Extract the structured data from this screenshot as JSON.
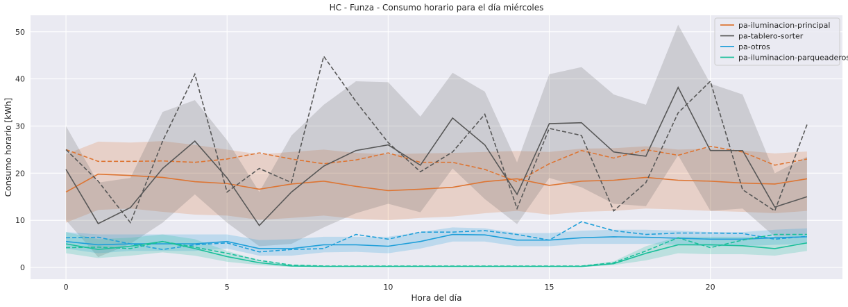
{
  "chart_data": {
    "type": "line",
    "title": "HC - Funza - Consumo horario para el día miércoles",
    "xlabel": "Hora del día",
    "ylabel": "Consumo horario [kWh]",
    "xlim": [
      -1.1,
      24.1
    ],
    "ylim": [
      -2.5,
      53.5
    ],
    "x_ticks": [
      0,
      5,
      10,
      15,
      20
    ],
    "y_ticks": [
      0,
      10,
      20,
      30,
      40,
      50
    ],
    "grid": true,
    "legend_position": "top-right",
    "background": "#eaeaf2",
    "x": [
      0,
      1,
      2,
      3,
      4,
      5,
      6,
      7,
      8,
      9,
      10,
      11,
      12,
      13,
      14,
      15,
      16,
      17,
      18,
      19,
      20,
      21,
      22,
      23
    ],
    "series": [
      {
        "name": "pa-iluminacion-principal",
        "color": "#dd7533",
        "mean": [
          16.0,
          19.8,
          19.5,
          19.1,
          18.2,
          17.8,
          16.6,
          17.7,
          18.3,
          17.2,
          16.3,
          16.6,
          17.0,
          18.2,
          18.8,
          17.4,
          18.3,
          18.5,
          19.1,
          18.5,
          18.3,
          17.9,
          17.7,
          18.8
        ],
        "lower": [
          9.5,
          12.2,
          12.5,
          11.8,
          11.2,
          11.0,
          10.1,
          10.5,
          11.0,
          10.3,
          10.0,
          10.5,
          10.8,
          11.5,
          12.0,
          11.2,
          11.8,
          12.0,
          12.5,
          12.3,
          12.0,
          11.8,
          11.5,
          12.0
        ],
        "upper": [
          24.0,
          26.7,
          26.5,
          26.8,
          26.0,
          25.0,
          24.0,
          24.5,
          25.0,
          24.3,
          24.0,
          24.2,
          24.3,
          24.5,
          24.7,
          24.5,
          25.2,
          25.3,
          25.7,
          25.0,
          25.2,
          24.8,
          24.2,
          24.6
        ],
        "dashed": [
          25.0,
          22.5,
          22.5,
          22.6,
          22.3,
          23.0,
          24.3,
          23.0,
          22.0,
          22.8,
          24.3,
          22.3,
          22.3,
          20.8,
          18.2,
          22.0,
          24.8,
          23.2,
          25.0,
          23.8,
          25.7,
          24.5,
          21.7,
          23.0
        ]
      },
      {
        "name": "pa-tablero-sorter",
        "color": "#575757",
        "mean": [
          20.8,
          9.3,
          12.7,
          21.0,
          26.8,
          19.0,
          8.9,
          16.0,
          21.5,
          24.8,
          26.0,
          21.7,
          31.7,
          26.0,
          15.5,
          30.5,
          30.7,
          24.5,
          23.6,
          38.2,
          24.8,
          24.8,
          12.8,
          15.0
        ],
        "lower": [
          10.0,
          2.2,
          5.0,
          9.5,
          15.5,
          9.5,
          4.5,
          5.0,
          8.5,
          11.5,
          13.5,
          11.7,
          21.0,
          14.5,
          9.2,
          19.0,
          17.0,
          13.5,
          13.0,
          23.8,
          12.0,
          12.5,
          6.5,
          7.0
        ],
        "upper": [
          30.0,
          18.0,
          19.0,
          33.0,
          35.5,
          27.0,
          16.0,
          28.0,
          34.5,
          39.5,
          39.3,
          32.0,
          41.3,
          37.3,
          22.3,
          41.0,
          42.5,
          36.7,
          34.5,
          51.5,
          39.0,
          36.7,
          20.0,
          23.5
        ],
        "dashed": [
          25.0,
          18.3,
          9.5,
          26.8,
          41.0,
          16.0,
          21.0,
          18.0,
          44.8,
          35.2,
          26.5,
          20.3,
          24.5,
          32.5,
          12.5,
          29.5,
          28.0,
          12.0,
          18.0,
          32.8,
          39.5,
          16.5,
          12.0,
          30.3
        ]
      },
      {
        "name": "pa-otros",
        "color": "#1f9fd9",
        "mean": [
          5.5,
          4.8,
          5.0,
          5.0,
          5.0,
          5.5,
          4.0,
          4.0,
          4.8,
          4.8,
          4.5,
          5.5,
          7.0,
          6.9,
          5.8,
          5.8,
          6.3,
          6.5,
          6.4,
          6.2,
          6.0,
          6.0,
          6.3,
          6.5
        ],
        "lower": [
          4.0,
          3.0,
          3.5,
          3.5,
          3.5,
          4.0,
          2.5,
          2.5,
          3.2,
          3.3,
          3.0,
          4.0,
          5.5,
          5.5,
          4.5,
          4.5,
          5.0,
          5.0,
          5.0,
          4.8,
          4.5,
          4.5,
          4.8,
          5.0
        ],
        "upper": [
          7.5,
          7.0,
          7.0,
          7.0,
          7.0,
          7.0,
          5.8,
          6.0,
          6.5,
          6.5,
          6.5,
          7.5,
          8.5,
          8.3,
          7.3,
          7.3,
          7.8,
          8.0,
          8.0,
          7.8,
          7.5,
          7.5,
          8.0,
          8.3
        ],
        "dashed": [
          6.3,
          6.4,
          5.0,
          3.8,
          4.8,
          5.2,
          3.3,
          3.8,
          4.0,
          7.0,
          6.0,
          7.5,
          7.5,
          7.8,
          7.0,
          5.8,
          9.7,
          7.8,
          7.0,
          7.3,
          7.3,
          7.2,
          6.0,
          6.6
        ]
      },
      {
        "name": "pa-iluminacion-parqueaderos",
        "color": "#1bbf9a",
        "mean": [
          5.0,
          3.8,
          4.5,
          5.5,
          4.0,
          2.3,
          1.0,
          0.3,
          0.2,
          0.2,
          0.2,
          0.2,
          0.2,
          0.2,
          0.2,
          0.2,
          0.2,
          0.8,
          3.0,
          4.8,
          4.8,
          4.6,
          4.0,
          5.2
        ],
        "lower": [
          3.0,
          2.0,
          2.5,
          3.2,
          2.5,
          1.2,
          0.5,
          0.1,
          0.1,
          0.1,
          0.1,
          0.1,
          0.1,
          0.1,
          0.1,
          0.1,
          0.1,
          0.5,
          1.5,
          3.0,
          2.8,
          2.8,
          2.5,
          3.5
        ],
        "upper": [
          7.5,
          6.0,
          6.3,
          7.0,
          6.0,
          3.5,
          1.5,
          0.6,
          0.4,
          0.4,
          0.4,
          0.4,
          0.4,
          0.4,
          0.4,
          0.4,
          0.4,
          1.3,
          4.5,
          6.5,
          6.5,
          6.5,
          6.5,
          7.0
        ],
        "dashed": [
          4.2,
          4.3,
          4.0,
          5.5,
          4.3,
          3.0,
          1.5,
          0.5,
          0.3,
          0.3,
          0.3,
          0.3,
          0.3,
          0.3,
          0.3,
          0.3,
          0.3,
          1.0,
          3.5,
          6.3,
          4.2,
          5.8,
          7.0,
          7.0
        ]
      }
    ]
  }
}
